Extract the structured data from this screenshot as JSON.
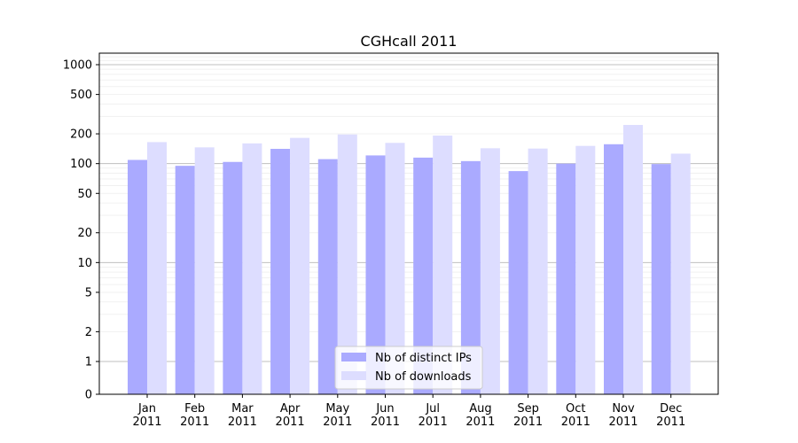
{
  "chart_data": {
    "type": "bar",
    "title": "CGHcall 2011",
    "xlabel": "",
    "ylabel": "",
    "yscale": "symlog",
    "ylim": [
      0,
      1300
    ],
    "grid": true,
    "legend_position": "bottom-center",
    "categories": [
      "Jan\n2011",
      "Feb\n2011",
      "Mar\n2011",
      "Apr\n2011",
      "May\n2011",
      "Jun\n2011",
      "Jul\n2011",
      "Aug\n2011",
      "Sep\n2011",
      "Oct\n2011",
      "Nov\n2011",
      "Dec\n2011"
    ],
    "y_ticks": [
      0,
      1,
      2,
      5,
      10,
      20,
      50,
      100,
      200,
      500,
      1000
    ],
    "series": [
      {
        "name": "Nb of distinct IPs",
        "color": "#aaaaff",
        "values": [
          109,
          95,
          104,
          141,
          111,
          121,
          115,
          106,
          84,
          100,
          157,
          99
        ]
      },
      {
        "name": "Nb of downloads",
        "color": "#ddddff",
        "values": [
          165,
          146,
          160,
          182,
          197,
          162,
          192,
          143,
          142,
          151,
          246,
          126
        ]
      }
    ]
  }
}
